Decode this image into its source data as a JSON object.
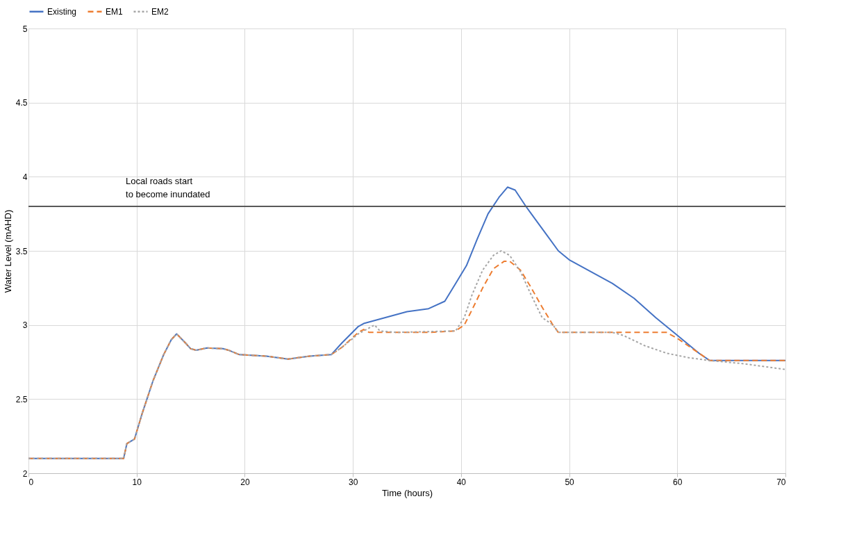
{
  "chart_data": {
    "type": "line",
    "xlabel": "Time (hours)",
    "ylabel": "Water Level (mAHD)",
    "xlim": [
      0,
      70
    ],
    "xticks": [
      0,
      10,
      20,
      30,
      40,
      50,
      60,
      70
    ],
    "ylim": [
      2,
      5
    ],
    "yticks": [
      2,
      2.5,
      3,
      3.5,
      4,
      4.5,
      5
    ],
    "grid": true,
    "legend": "top",
    "marker": "none",
    "ref_lines": [
      {
        "axis": "y",
        "value": 3.8,
        "color": "#595959",
        "line_style": "solid",
        "label": "Local roads start to become inundated"
      }
    ],
    "series": [
      {
        "name": "Existing",
        "color": "#4472c4",
        "line_style": "solid",
        "x": [
          0,
          8.8,
          9.1,
          9.8,
          10.5,
          11.5,
          12.5,
          13.2,
          13.7,
          14.5,
          15,
          15.5,
          16.5,
          18,
          18.5,
          19.5,
          22,
          24,
          26,
          28,
          29,
          30.5,
          31,
          33,
          35,
          37,
          38.5,
          39.5,
          40.5,
          41.5,
          42.5,
          43.5,
          44.3,
          45,
          46,
          47,
          48,
          49,
          50,
          52,
          54,
          56,
          58,
          60,
          62,
          63,
          65,
          70
        ],
        "values": [
          2.1,
          2.1,
          2.2,
          2.23,
          2.4,
          2.62,
          2.8,
          2.9,
          2.94,
          2.88,
          2.84,
          2.83,
          2.845,
          2.84,
          2.83,
          2.8,
          2.79,
          2.77,
          2.79,
          2.8,
          2.88,
          2.99,
          3.01,
          3.05,
          3.09,
          3.11,
          3.16,
          3.28,
          3.4,
          3.58,
          3.75,
          3.86,
          3.93,
          3.91,
          3.8,
          3.7,
          3.6,
          3.5,
          3.44,
          3.36,
          3.28,
          3.18,
          3.05,
          2.93,
          2.81,
          2.76,
          2.76,
          2.76
        ]
      },
      {
        "name": "EM1",
        "color": "#ed7d31",
        "line_style": "dashed",
        "x": [
          0,
          8.8,
          9.1,
          9.8,
          10.5,
          11.5,
          12.5,
          13.2,
          13.7,
          14.5,
          15,
          15.5,
          16.5,
          18,
          18.5,
          19.5,
          22,
          24,
          26,
          28,
          29,
          30.5,
          31,
          31.5,
          34,
          37,
          39.5,
          40.3,
          41,
          42,
          43,
          44,
          44.5,
          45.5,
          46.5,
          47.5,
          48.5,
          49,
          52,
          55,
          59,
          60,
          62,
          63,
          70
        ],
        "values": [
          2.1,
          2.1,
          2.2,
          2.23,
          2.4,
          2.62,
          2.8,
          2.9,
          2.94,
          2.88,
          2.84,
          2.83,
          2.845,
          2.84,
          2.83,
          2.8,
          2.79,
          2.77,
          2.79,
          2.8,
          2.85,
          2.95,
          2.97,
          2.95,
          2.95,
          2.95,
          2.96,
          3.0,
          3.1,
          3.25,
          3.38,
          3.43,
          3.43,
          3.37,
          3.25,
          3.12,
          3.0,
          2.95,
          2.95,
          2.95,
          2.95,
          2.91,
          2.81,
          2.76,
          2.76
        ]
      },
      {
        "name": "EM2",
        "color": "#a5a5a5",
        "line_style": "dotted",
        "x": [
          0,
          8.8,
          9.1,
          9.8,
          10.5,
          11.5,
          12.5,
          13.2,
          13.7,
          14.5,
          15,
          15.5,
          16.5,
          18,
          18.5,
          19.5,
          22,
          24,
          26,
          28,
          29,
          30.5,
          32,
          32.5,
          34,
          39.5,
          40.3,
          41,
          42,
          43,
          43.7,
          44.5,
          45.5,
          46.5,
          47.5,
          48.5,
          49,
          54,
          55,
          57,
          59,
          61,
          63,
          66,
          70
        ],
        "values": [
          2.1,
          2.1,
          2.2,
          2.23,
          2.4,
          2.62,
          2.8,
          2.9,
          2.94,
          2.88,
          2.84,
          2.83,
          2.845,
          2.84,
          2.83,
          2.8,
          2.79,
          2.77,
          2.79,
          2.8,
          2.85,
          2.94,
          3.0,
          2.96,
          2.95,
          2.96,
          3.05,
          3.2,
          3.37,
          3.47,
          3.5,
          3.47,
          3.36,
          3.2,
          3.05,
          3.0,
          2.95,
          2.95,
          2.93,
          2.86,
          2.81,
          2.78,
          2.76,
          2.74,
          2.7
        ]
      }
    ]
  }
}
